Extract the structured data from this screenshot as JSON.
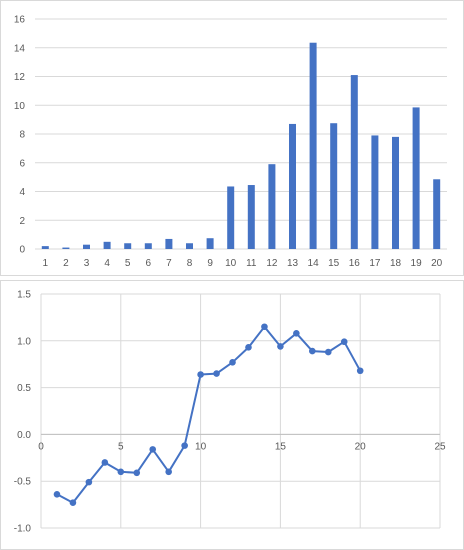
{
  "chart_data": [
    {
      "type": "bar",
      "categories": [
        "1",
        "2",
        "3",
        "4",
        "5",
        "6",
        "7",
        "8",
        "9",
        "10",
        "11",
        "12",
        "13",
        "14",
        "15",
        "16",
        "17",
        "18",
        "19",
        "20"
      ],
      "values": [
        0.2,
        0.1,
        0.3,
        0.5,
        0.4,
        0.4,
        0.7,
        0.4,
        0.75,
        4.35,
        4.45,
        5.9,
        8.7,
        14.35,
        8.75,
        12.1,
        7.9,
        7.8,
        9.85,
        4.85
      ],
      "ylim": [
        0,
        16
      ],
      "yticks": [
        "0",
        "2",
        "4",
        "6",
        "8",
        "10",
        "12",
        "14",
        "16"
      ],
      "grid": "horizontal",
      "legend": "none",
      "bar_color": "#4472c4",
      "title": "",
      "xlabel": "",
      "ylabel": ""
    },
    {
      "type": "line",
      "x": [
        1,
        2,
        3,
        4,
        5,
        6,
        7,
        8,
        9,
        10,
        11,
        12,
        13,
        14,
        15,
        16,
        17,
        18,
        19,
        20
      ],
      "y": [
        -0.64,
        -0.73,
        -0.51,
        -0.3,
        -0.4,
        -0.41,
        -0.16,
        -0.4,
        -0.12,
        0.64,
        0.65,
        0.77,
        0.93,
        1.15,
        0.94,
        1.08,
        0.89,
        0.88,
        0.99,
        0.68
      ],
      "xlim": [
        0,
        25
      ],
      "ylim": [
        -1.0,
        1.5
      ],
      "xticks": [
        "0",
        "5",
        "10",
        "15",
        "20",
        "25"
      ],
      "yticks": [
        "-1.0",
        "-0.5",
        "0.0",
        "0.5",
        "1.0",
        "1.5"
      ],
      "grid": "both",
      "legend": "none",
      "line_color": "#4472c4",
      "marker": "circle",
      "title": "",
      "xlabel": "",
      "ylabel": ""
    }
  ]
}
